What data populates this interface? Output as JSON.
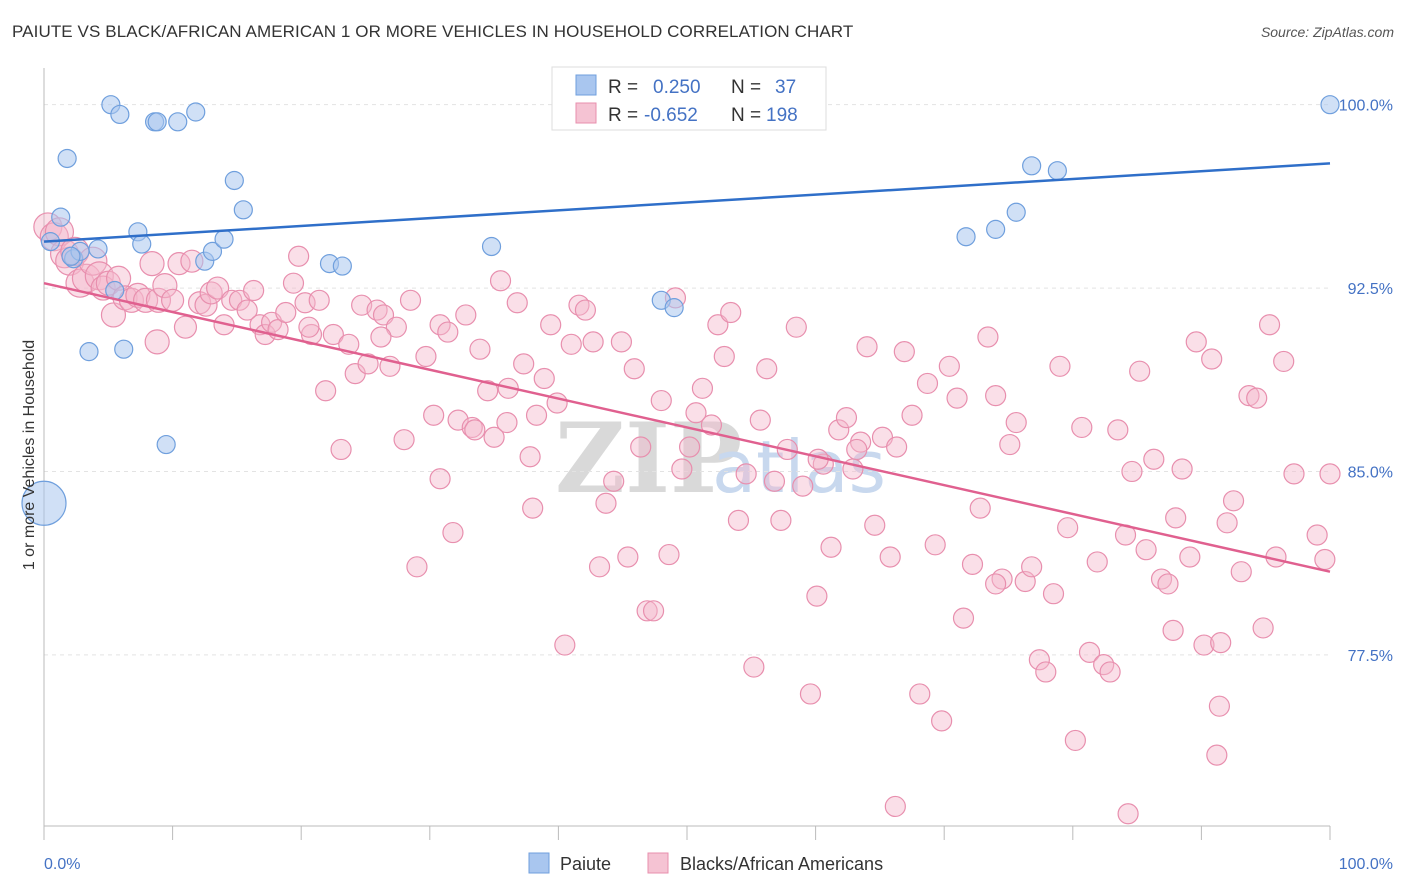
{
  "header": {
    "title": "PAIUTE VS BLACK/AFRICAN AMERICAN 1 OR MORE VEHICLES IN HOUSEHOLD CORRELATION CHART",
    "source": "Source: ZipAtlas.com"
  },
  "watermark": {
    "zip": "ZIP",
    "atlas": "atlas"
  },
  "legend_box": {
    "rows": [
      {
        "r_label": "R =",
        "r_value": "0.250",
        "n_label": "N =",
        "n_value": "37"
      },
      {
        "r_label": "R =",
        "r_value": "-0.652",
        "n_label": "N =",
        "n_value": "198"
      }
    ]
  },
  "chart_data": {
    "type": "scatter",
    "title": "PAIUTE VS BLACK/AFRICAN AMERICAN 1 OR MORE VEHICLES IN HOUSEHOLD CORRELATION CHART",
    "xlabel": "",
    "ylabel": "1 or more Vehicles in Household",
    "xlim": [
      0,
      100
    ],
    "ylim": [
      70.5,
      101.5
    ],
    "y_ticks": [
      77.5,
      85.0,
      92.5,
      100.0
    ],
    "y_tick_labels": [
      "77.5%",
      "85.0%",
      "92.5%",
      "100.0%"
    ],
    "x_tick_labels": [
      "0.0%",
      "100.0%"
    ],
    "grid": true,
    "legend_placement": "bottom-center",
    "colors": {
      "paiute": "#a9c6ef",
      "paiute_line": "#2f6fc9",
      "black": "#f5b7cb",
      "black_line": "#e0608f"
    },
    "series": [
      {
        "name": "Paiute",
        "R": 0.25,
        "N": 37,
        "trend": [
          [
            0,
            94.4
          ],
          [
            100,
            97.6
          ]
        ],
        "points": [
          [
            0.5,
            94.4
          ],
          [
            1.3,
            95.4
          ],
          [
            1.8,
            97.8
          ],
          [
            2.3,
            93.7
          ],
          [
            2.8,
            94.0
          ],
          [
            3.5,
            89.9
          ],
          [
            4.2,
            94.1
          ],
          [
            5.2,
            100.0
          ],
          [
            5.5,
            92.4
          ],
          [
            5.9,
            99.6
          ],
          [
            6.2,
            90.0
          ],
          [
            7.3,
            94.8
          ],
          [
            7.6,
            94.3
          ],
          [
            8.6,
            99.3
          ],
          [
            8.8,
            99.3
          ],
          [
            9.5,
            86.1
          ],
          [
            10.4,
            99.3
          ],
          [
            11.8,
            99.7
          ],
          [
            12.5,
            93.6
          ],
          [
            13.1,
            94.0
          ],
          [
            14.0,
            94.5
          ],
          [
            14.8,
            96.9
          ],
          [
            15.5,
            95.7
          ],
          [
            22.2,
            93.5
          ],
          [
            23.2,
            93.4
          ],
          [
            34.8,
            94.2
          ],
          [
            48.0,
            92.0
          ],
          [
            49.0,
            91.7
          ],
          [
            48.5,
            100.0
          ],
          [
            71.7,
            94.6
          ],
          [
            74.0,
            94.9
          ],
          [
            75.6,
            95.6
          ],
          [
            76.8,
            97.5
          ],
          [
            78.8,
            97.3
          ],
          [
            100.0,
            100.0
          ],
          [
            0.0,
            83.7
          ],
          [
            2.1,
            93.8
          ]
        ],
        "radii": [
          9,
          9,
          9,
          9,
          9,
          9,
          9,
          9,
          9,
          9,
          9,
          9,
          9,
          9,
          9,
          9,
          9,
          9,
          9,
          9,
          9,
          9,
          9,
          9,
          9,
          9,
          9,
          9,
          9,
          9,
          9,
          9,
          9,
          9,
          9,
          22,
          9
        ]
      },
      {
        "name": "Blacks/African Americans",
        "R": -0.652,
        "N": 198,
        "trend": [
          [
            0,
            92.7
          ],
          [
            100,
            80.9
          ]
        ],
        "points": [
          [
            0.3,
            95.0
          ],
          [
            0.8,
            94.6
          ],
          [
            1.2,
            94.8
          ],
          [
            1.6,
            93.9
          ],
          [
            2.0,
            93.6
          ],
          [
            2.4,
            94.0
          ],
          [
            2.8,
            92.7
          ],
          [
            3.3,
            92.9
          ],
          [
            3.8,
            93.6
          ],
          [
            4.3,
            93.0
          ],
          [
            4.6,
            92.5
          ],
          [
            5.0,
            92.7
          ],
          [
            5.4,
            91.4
          ],
          [
            5.8,
            92.9
          ],
          [
            6.3,
            92.1
          ],
          [
            6.8,
            92.0
          ],
          [
            7.3,
            92.2
          ],
          [
            7.9,
            92.0
          ],
          [
            8.4,
            93.5
          ],
          [
            8.9,
            92.0
          ],
          [
            8.8,
            90.3
          ],
          [
            9.4,
            92.6
          ],
          [
            10.0,
            92.0
          ],
          [
            10.5,
            93.5
          ],
          [
            11.0,
            90.9
          ],
          [
            11.5,
            93.6
          ],
          [
            12.1,
            91.9
          ],
          [
            12.6,
            91.8
          ],
          [
            13.0,
            92.3
          ],
          [
            13.5,
            92.5
          ],
          [
            14.0,
            91.0
          ],
          [
            14.6,
            92.0
          ],
          [
            15.2,
            92.0
          ],
          [
            15.8,
            91.6
          ],
          [
            16.3,
            92.4
          ],
          [
            16.8,
            91.0
          ],
          [
            17.2,
            90.6
          ],
          [
            17.7,
            91.1
          ],
          [
            18.2,
            90.8
          ],
          [
            18.8,
            91.5
          ],
          [
            19.4,
            92.7
          ],
          [
            19.8,
            93.8
          ],
          [
            20.3,
            91.9
          ],
          [
            20.8,
            90.6
          ],
          [
            21.4,
            92.0
          ],
          [
            21.9,
            88.3
          ],
          [
            22.5,
            90.6
          ],
          [
            23.1,
            85.9
          ],
          [
            23.7,
            90.2
          ],
          [
            24.2,
            89.0
          ],
          [
            24.7,
            91.8
          ],
          [
            25.2,
            89.4
          ],
          [
            25.9,
            91.6
          ],
          [
            26.4,
            91.4
          ],
          [
            26.9,
            89.3
          ],
          [
            27.4,
            90.9
          ],
          [
            28.0,
            86.3
          ],
          [
            28.5,
            92.0
          ],
          [
            29.0,
            81.1
          ],
          [
            29.7,
            89.7
          ],
          [
            30.3,
            87.3
          ],
          [
            30.8,
            91.0
          ],
          [
            31.4,
            90.7
          ],
          [
            31.8,
            82.5
          ],
          [
            32.2,
            87.1
          ],
          [
            32.8,
            91.4
          ],
          [
            33.3,
            86.8
          ],
          [
            33.9,
            90.0
          ],
          [
            34.5,
            88.3
          ],
          [
            35.0,
            86.4
          ],
          [
            35.5,
            92.8
          ],
          [
            36.1,
            88.4
          ],
          [
            36.8,
            91.9
          ],
          [
            37.3,
            89.4
          ],
          [
            37.8,
            85.6
          ],
          [
            38.0,
            83.5
          ],
          [
            38.3,
            87.3
          ],
          [
            38.9,
            88.8
          ],
          [
            39.4,
            91.0
          ],
          [
            39.9,
            87.8
          ],
          [
            40.5,
            77.9
          ],
          [
            41.0,
            90.2
          ],
          [
            41.6,
            91.8
          ],
          [
            42.1,
            91.6
          ],
          [
            42.7,
            90.3
          ],
          [
            43.2,
            81.1
          ],
          [
            43.7,
            83.7
          ],
          [
            44.3,
            84.6
          ],
          [
            44.9,
            90.3
          ],
          [
            45.4,
            81.5
          ],
          [
            45.9,
            89.2
          ],
          [
            46.4,
            86.0
          ],
          [
            46.9,
            79.3
          ],
          [
            47.4,
            79.3
          ],
          [
            48.0,
            87.9
          ],
          [
            48.6,
            81.6
          ],
          [
            49.1,
            92.1
          ],
          [
            49.6,
            85.1
          ],
          [
            50.2,
            86.0
          ],
          [
            50.7,
            87.4
          ],
          [
            51.2,
            88.4
          ],
          [
            51.9,
            86.9
          ],
          [
            52.4,
            91.0
          ],
          [
            52.9,
            89.7
          ],
          [
            53.4,
            91.5
          ],
          [
            54.0,
            83.0
          ],
          [
            54.6,
            84.9
          ],
          [
            55.2,
            77.0
          ],
          [
            55.7,
            87.1
          ],
          [
            56.2,
            89.2
          ],
          [
            56.8,
            84.6
          ],
          [
            57.3,
            83.0
          ],
          [
            57.8,
            85.9
          ],
          [
            58.5,
            90.9
          ],
          [
            59.0,
            84.4
          ],
          [
            59.6,
            75.9
          ],
          [
            60.1,
            79.9
          ],
          [
            60.6,
            85.3
          ],
          [
            61.2,
            81.9
          ],
          [
            61.8,
            86.7
          ],
          [
            62.4,
            87.2
          ],
          [
            62.9,
            85.1
          ],
          [
            63.5,
            86.2
          ],
          [
            64.0,
            90.1
          ],
          [
            64.6,
            82.8
          ],
          [
            65.2,
            86.4
          ],
          [
            65.8,
            81.5
          ],
          [
            66.3,
            86.0
          ],
          [
            66.9,
            89.9
          ],
          [
            67.5,
            87.3
          ],
          [
            68.1,
            75.9
          ],
          [
            68.7,
            88.6
          ],
          [
            69.3,
            82.0
          ],
          [
            69.8,
            74.8
          ],
          [
            70.4,
            89.3
          ],
          [
            71.0,
            88.0
          ],
          [
            71.5,
            79.0
          ],
          [
            72.2,
            81.2
          ],
          [
            72.8,
            83.5
          ],
          [
            73.4,
            90.5
          ],
          [
            74.0,
            88.1
          ],
          [
            74.5,
            80.6
          ],
          [
            75.1,
            86.1
          ],
          [
            75.6,
            87.0
          ],
          [
            76.3,
            80.5
          ],
          [
            76.8,
            81.1
          ],
          [
            77.4,
            77.3
          ],
          [
            77.9,
            76.8
          ],
          [
            78.5,
            80.0
          ],
          [
            79.0,
            89.3
          ],
          [
            79.6,
            82.7
          ],
          [
            80.2,
            74.0
          ],
          [
            80.7,
            86.8
          ],
          [
            81.3,
            77.6
          ],
          [
            81.9,
            81.3
          ],
          [
            82.4,
            77.1
          ],
          [
            82.9,
            76.8
          ],
          [
            83.5,
            86.7
          ],
          [
            84.1,
            82.4
          ],
          [
            84.6,
            85.0
          ],
          [
            85.2,
            89.1
          ],
          [
            85.7,
            81.8
          ],
          [
            86.3,
            85.5
          ],
          [
            86.9,
            80.6
          ],
          [
            87.4,
            80.4
          ],
          [
            88.0,
            83.1
          ],
          [
            88.5,
            85.1
          ],
          [
            89.1,
            81.5
          ],
          [
            89.6,
            90.3
          ],
          [
            90.2,
            77.9
          ],
          [
            90.8,
            89.6
          ],
          [
            91.4,
            75.4
          ],
          [
            92.0,
            82.9
          ],
          [
            92.5,
            83.8
          ],
          [
            93.1,
            80.9
          ],
          [
            93.7,
            88.1
          ],
          [
            94.3,
            88.0
          ],
          [
            94.8,
            78.6
          ],
          [
            95.3,
            91.0
          ],
          [
            95.8,
            81.5
          ],
          [
            96.4,
            89.5
          ],
          [
            97.2,
            84.9
          ],
          [
            99.0,
            82.4
          ],
          [
            99.6,
            81.4
          ],
          [
            100.0,
            84.9
          ],
          [
            91.5,
            78.0
          ],
          [
            87.8,
            78.5
          ],
          [
            66.2,
            71.3
          ],
          [
            84.3,
            71.0
          ],
          [
            91.2,
            73.4
          ],
          [
            33.5,
            86.7
          ],
          [
            36.0,
            87.0
          ],
          [
            26.2,
            90.5
          ],
          [
            30.8,
            84.7
          ],
          [
            63.2,
            85.9
          ],
          [
            74.0,
            80.4
          ],
          [
            60.2,
            85.5
          ],
          [
            20.6,
            90.9
          ]
        ],
        "radii": [
          14,
          14,
          14,
          14,
          14,
          14,
          14,
          14,
          14,
          14,
          12,
          12,
          12,
          12,
          12,
          12,
          12,
          12,
          12,
          12,
          12,
          12,
          11,
          11,
          11,
          11,
          11,
          11,
          11,
          11,
          10,
          10,
          10,
          10,
          10,
          10,
          10,
          10,
          10,
          10,
          10,
          10,
          10,
          10,
          10,
          10,
          10,
          10,
          10,
          10,
          10,
          10,
          10,
          10,
          10,
          10,
          10,
          10,
          10,
          10,
          10,
          10,
          10,
          10,
          10,
          10,
          10,
          10,
          10,
          10,
          10,
          10,
          10,
          10,
          10,
          10,
          10,
          10,
          10,
          10,
          10,
          10,
          10,
          10,
          10,
          10,
          10,
          10,
          10,
          10,
          10,
          10,
          10,
          10,
          10,
          10,
          10,
          10,
          10,
          10,
          10,
          10,
          10,
          10,
          10,
          10,
          10,
          10,
          10,
          10,
          10,
          10,
          10,
          10,
          10,
          10,
          10,
          10,
          10,
          10,
          10,
          10,
          10,
          10,
          10,
          10,
          10,
          10,
          10,
          10,
          10,
          10,
          10,
          10,
          10,
          10,
          10,
          10,
          10,
          10,
          10,
          10,
          10,
          10,
          10,
          10,
          10,
          10,
          10,
          10,
          10,
          10,
          10,
          10,
          10,
          10,
          10,
          10,
          10,
          10,
          10,
          10,
          10,
          10,
          10,
          10,
          10,
          10,
          10,
          10,
          10,
          10,
          10,
          10,
          10,
          10,
          10,
          10,
          10,
          10,
          10,
          10,
          10,
          10,
          10,
          10,
          10,
          10,
          10,
          10,
          10,
          10,
          10,
          10,
          10,
          10,
          10,
          10,
          10,
          10,
          10,
          10,
          10,
          10,
          10,
          10,
          10
        ]
      }
    ]
  }
}
